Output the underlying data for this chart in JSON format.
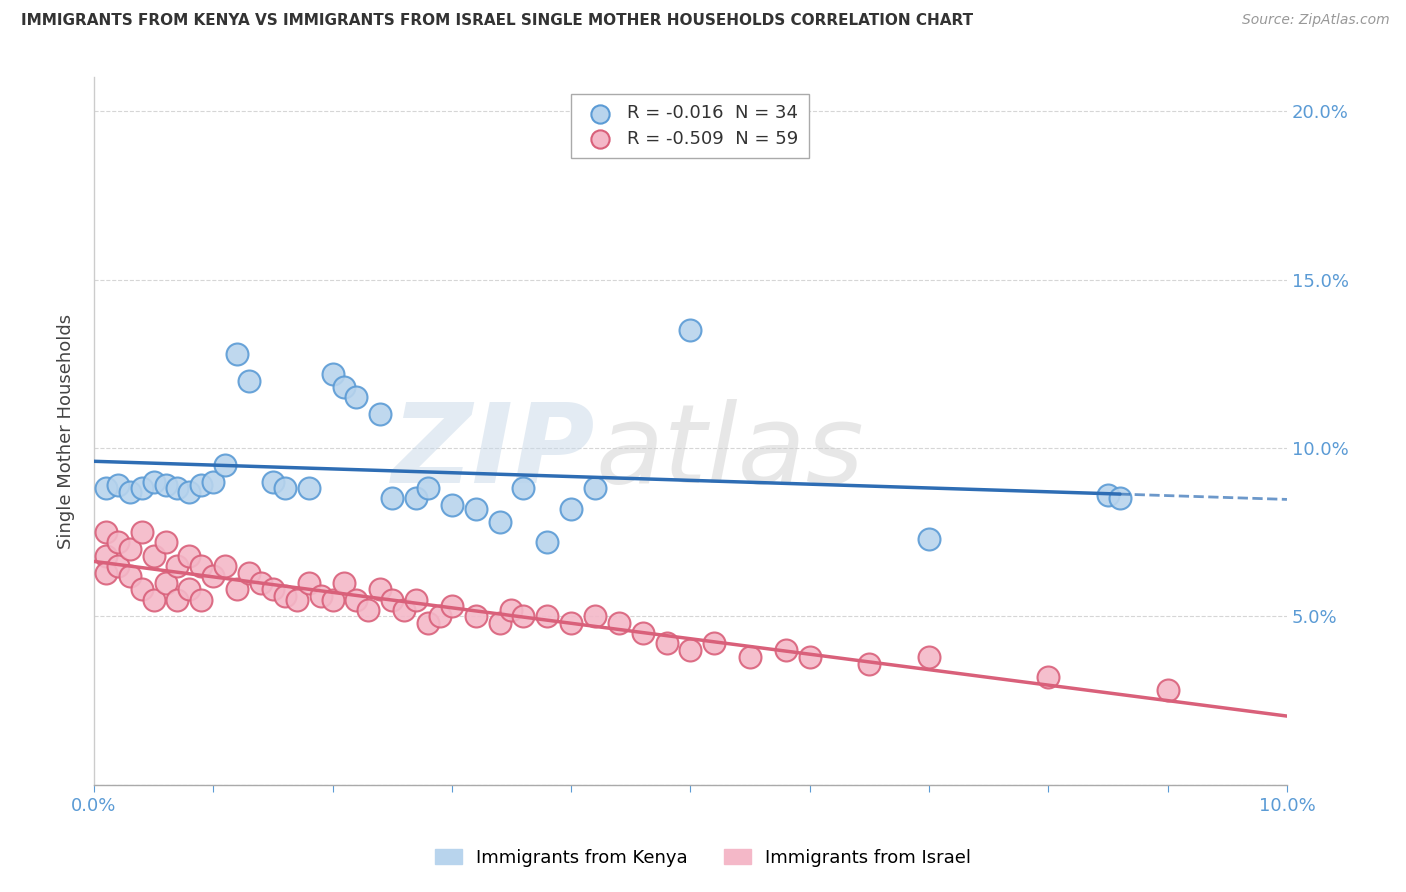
{
  "title": "IMMIGRANTS FROM KENYA VS IMMIGRANTS FROM ISRAEL SINGLE MOTHER HOUSEHOLDS CORRELATION CHART",
  "source": "Source: ZipAtlas.com",
  "ylabel": "Single Mother Households",
  "xlim": [
    0.0,
    0.1
  ],
  "ylim": [
    0.0,
    0.21
  ],
  "yticks": [
    0.0,
    0.05,
    0.1,
    0.15,
    0.2
  ],
  "ytick_right_labels": [
    "",
    "5.0%",
    "10.0%",
    "15.0%",
    "20.0%"
  ],
  "xticks": [
    0.0,
    0.01,
    0.02,
    0.03,
    0.04,
    0.05,
    0.06,
    0.07,
    0.08,
    0.09,
    0.1
  ],
  "xtick_labels": [
    "0.0%",
    "",
    "",
    "",
    "",
    "",
    "",
    "",
    "",
    "",
    "10.0%"
  ],
  "kenya_color": "#b8d4ed",
  "kenya_edge_color": "#5b9bd5",
  "israel_color": "#f4b8c8",
  "israel_edge_color": "#d9607a",
  "kenya_line_color": "#2e6db4",
  "israel_line_color": "#d9607a",
  "kenya_R": -0.016,
  "kenya_N": 34,
  "israel_R": -0.509,
  "israel_N": 59,
  "watermark_left": "ZIP",
  "watermark_right": "atlas",
  "background_color": "#ffffff",
  "grid_color": "#cccccc",
  "kenya_x": [
    0.001,
    0.002,
    0.003,
    0.004,
    0.005,
    0.006,
    0.007,
    0.008,
    0.009,
    0.01,
    0.011,
    0.012,
    0.013,
    0.015,
    0.016,
    0.018,
    0.02,
    0.021,
    0.022,
    0.024,
    0.025,
    0.027,
    0.028,
    0.03,
    0.032,
    0.034,
    0.036,
    0.038,
    0.04,
    0.042,
    0.05,
    0.07,
    0.085,
    0.086
  ],
  "kenya_y": [
    0.088,
    0.089,
    0.087,
    0.088,
    0.09,
    0.089,
    0.088,
    0.087,
    0.089,
    0.09,
    0.095,
    0.128,
    0.12,
    0.09,
    0.088,
    0.088,
    0.122,
    0.118,
    0.115,
    0.11,
    0.085,
    0.085,
    0.088,
    0.083,
    0.082,
    0.078,
    0.088,
    0.072,
    0.082,
    0.088,
    0.135,
    0.073,
    0.086,
    0.085
  ],
  "israel_x": [
    0.001,
    0.001,
    0.001,
    0.002,
    0.002,
    0.003,
    0.003,
    0.004,
    0.004,
    0.005,
    0.005,
    0.006,
    0.006,
    0.007,
    0.007,
    0.008,
    0.008,
    0.009,
    0.009,
    0.01,
    0.011,
    0.012,
    0.013,
    0.014,
    0.015,
    0.016,
    0.017,
    0.018,
    0.019,
    0.02,
    0.021,
    0.022,
    0.023,
    0.024,
    0.025,
    0.026,
    0.027,
    0.028,
    0.029,
    0.03,
    0.032,
    0.034,
    0.035,
    0.036,
    0.038,
    0.04,
    0.042,
    0.044,
    0.046,
    0.048,
    0.05,
    0.052,
    0.055,
    0.058,
    0.06,
    0.065,
    0.07,
    0.08,
    0.09
  ],
  "israel_y": [
    0.075,
    0.068,
    0.063,
    0.072,
    0.065,
    0.07,
    0.062,
    0.075,
    0.058,
    0.068,
    0.055,
    0.072,
    0.06,
    0.065,
    0.055,
    0.068,
    0.058,
    0.065,
    0.055,
    0.062,
    0.065,
    0.058,
    0.063,
    0.06,
    0.058,
    0.056,
    0.055,
    0.06,
    0.056,
    0.055,
    0.06,
    0.055,
    0.052,
    0.058,
    0.055,
    0.052,
    0.055,
    0.048,
    0.05,
    0.053,
    0.05,
    0.048,
    0.052,
    0.05,
    0.05,
    0.048,
    0.05,
    0.048,
    0.045,
    0.042,
    0.04,
    0.042,
    0.038,
    0.04,
    0.038,
    0.036,
    0.038,
    0.032,
    0.028
  ]
}
